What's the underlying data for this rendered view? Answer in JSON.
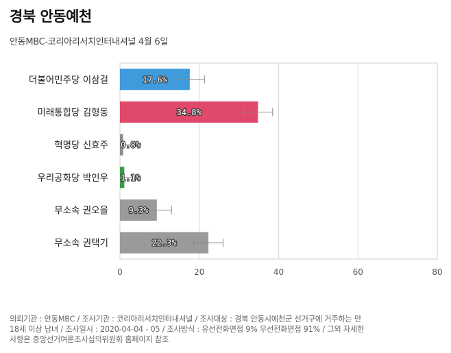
{
  "title": "경북 안동예천",
  "subtitle": "안동MBC-코리아리서치인터내셔널 4월 6일",
  "chart_data": {
    "type": "bar",
    "orientation": "horizontal",
    "categories": [
      "더불어민주당 이삼걸",
      "미래통합당 김형동",
      "혁명당 신효주",
      "우리공화당 박인우",
      "무소속 권오을",
      "무소속 권택기"
    ],
    "values": [
      17.6,
      34.8,
      0.8,
      1.1,
      9.3,
      22.3
    ],
    "value_labels": [
      "17.6%",
      "34.8%",
      "0.8%",
      "1.1%",
      "9.3%",
      "22.3%"
    ],
    "error_margin": 3.7,
    "colors": [
      "#3f9bdc",
      "#e0496b",
      "#8c8c8c",
      "#3c9a4a",
      "#9a9a9a",
      "#9a9a9a"
    ],
    "xlim": [
      0,
      80
    ],
    "xticks": [
      0,
      20,
      40,
      60,
      80
    ],
    "xtick_labels": [
      "0",
      "20",
      "40",
      "60",
      "80"
    ],
    "grid": true
  },
  "footer": {
    "line1": "의뢰기관 : 안동MBC / 조사기관 : 코리아리서치인터내셔널 / 조사대상 : 경북 안동시예천군 선거구에 거주하는 만",
    "line2": "18세 이상 남녀 / 조사일시 : 2020-04-04 - 05 / 조사방식 : 유선전화면접 9% 무선전화면접 91% / 그외 자세한",
    "line3": "사항은 중앙선거여론조사심의위원회 홈페이지 참조"
  }
}
